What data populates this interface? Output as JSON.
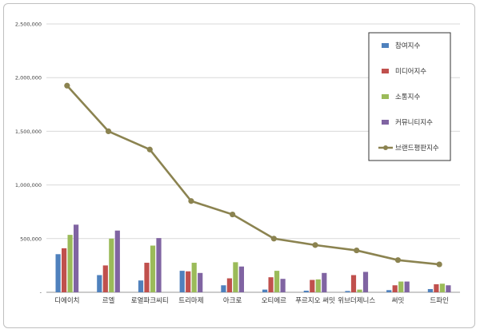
{
  "chart_data": {
    "type": "bar",
    "title": "",
    "xlabel": "",
    "ylabel": "",
    "ylim": [
      0,
      2500000
    ],
    "yticks": [
      0,
      500000,
      1000000,
      1500000,
      2000000,
      2500000
    ],
    "ytick_labels": [
      "-",
      "500,000",
      "1,000,000",
      "1,500,000",
      "2,000,000",
      "2,500,000"
    ],
    "grid": true,
    "legend_position": "top-right",
    "categories": [
      "디에이치",
      "르엘",
      "로열파크씨티",
      "트리마제",
      "아크로",
      "오티에르",
      "푸르지오 써밋",
      "위브더제니스",
      "써밋",
      "드파인"
    ],
    "series": [
      {
        "name": "참여지수",
        "kind": "bar",
        "color": "#4f81bd",
        "values": [
          355000,
          160000,
          110000,
          200000,
          65000,
          25000,
          15000,
          12000,
          20000,
          30000
        ]
      },
      {
        "name": "미디어지수",
        "kind": "bar",
        "color": "#c0504d",
        "values": [
          410000,
          250000,
          275000,
          195000,
          130000,
          140000,
          115000,
          160000,
          65000,
          75000
        ]
      },
      {
        "name": "소통지수",
        "kind": "bar",
        "color": "#9bbb59",
        "values": [
          535000,
          500000,
          435000,
          275000,
          280000,
          200000,
          120000,
          25000,
          100000,
          80000
        ]
      },
      {
        "name": "커뮤니티지수",
        "kind": "bar",
        "color": "#8064a2",
        "values": [
          630000,
          575000,
          505000,
          180000,
          240000,
          125000,
          180000,
          190000,
          100000,
          65000
        ]
      },
      {
        "name": "브랜드평판지수",
        "kind": "line",
        "color": "#8b8350",
        "values": [
          1925000,
          1500000,
          1330000,
          850000,
          725000,
          500000,
          440000,
          390000,
          300000,
          260000
        ]
      }
    ]
  }
}
